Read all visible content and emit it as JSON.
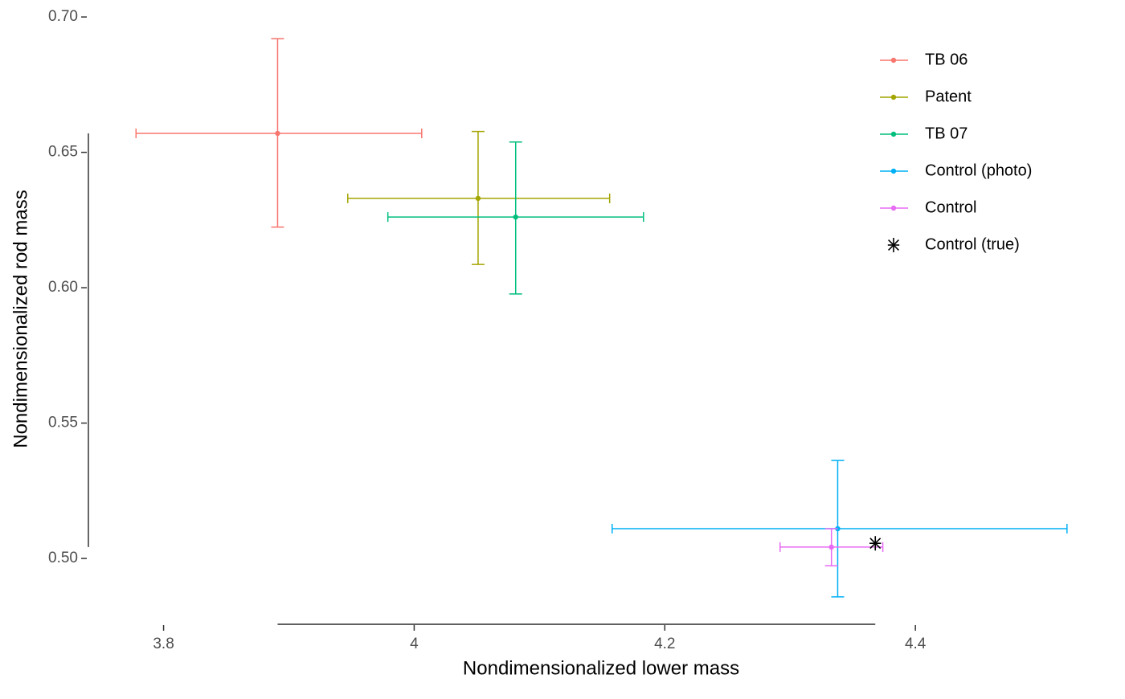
{
  "chart_data": {
    "type": "scatter",
    "xlabel": "Nondimensionalized lower mass",
    "ylabel": "Nondimensionalized rod mass",
    "xlim": [
      3.74,
      4.566
    ],
    "ylim": [
      0.4748,
      0.7033
    ],
    "xticks": [
      3.8,
      4.0,
      4.2,
      4.4
    ],
    "yticks": [
      {
        "value": 0.5,
        "label": "0.50"
      },
      0.55,
      {
        "value": 0.6,
        "label": "0.60"
      },
      0.65,
      {
        "value": 0.7,
        "label": "0.70"
      }
    ],
    "series": [
      {
        "name": "TB 06",
        "color": "#F8766D",
        "x": [
          3.891
        ],
        "y": [
          0.657
        ],
        "xlow": [
          3.778
        ],
        "xhigh": [
          4.006
        ],
        "ylow": [
          0.6224
        ],
        "yhigh": [
          0.692
        ]
      },
      {
        "name": "Patent",
        "color": "#A3A500",
        "x": [
          4.051
        ],
        "y": [
          0.633
        ],
        "xlow": [
          3.947
        ],
        "xhigh": [
          4.156
        ],
        "ylow": [
          0.6086
        ],
        "yhigh": [
          0.6577
        ]
      },
      {
        "name": "TB 07",
        "color": "#00BF7D",
        "x": [
          4.081
        ],
        "y": [
          0.6261
        ],
        "xlow": [
          3.979
        ],
        "xhigh": [
          4.183
        ],
        "ylow": [
          0.5977
        ],
        "yhigh": [
          0.6538
        ]
      },
      {
        "name": "Control (photo)",
        "color": "#00B0F6",
        "x": [
          4.338
        ],
        "y": [
          0.511
        ],
        "xlow": [
          4.158
        ],
        "xhigh": [
          4.521
        ],
        "ylow": [
          0.4858
        ],
        "yhigh": [
          0.5362
        ]
      },
      {
        "name": "Control",
        "color": "#E76BF3",
        "x": [
          4.333
        ],
        "y": [
          0.5042
        ],
        "xlow": [
          4.292
        ],
        "xhigh": [
          4.374
        ],
        "ylow": [
          0.4973
        ],
        "yhigh": [
          0.511
        ]
      },
      {
        "name": "Control (true)",
        "color": "#000000",
        "marker": "asterisk",
        "x": [
          4.368
        ],
        "y": [
          0.5056
        ]
      }
    ]
  }
}
